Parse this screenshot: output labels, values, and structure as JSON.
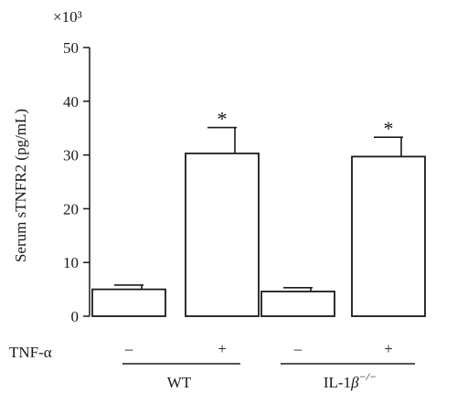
{
  "chart_data": {
    "type": "bar",
    "title": "",
    "ylabel": "Serum sTNFR2 (pg/mL)",
    "y_multiplier_label": "×10³",
    "ylim": [
      0,
      50
    ],
    "yticks": [
      0,
      10,
      20,
      30,
      40,
      50
    ],
    "ytick_labels": [
      "0",
      "10",
      "20",
      "30",
      "40",
      "50"
    ],
    "condition_row_label": "TNF-α",
    "bars": [
      {
        "group": "WT",
        "condition": "–",
        "value": 5.0,
        "error": 0.8,
        "annotation": ""
      },
      {
        "group": "WT",
        "condition": "+",
        "value": 30.3,
        "error": 4.8,
        "annotation": "*"
      },
      {
        "group": "IL-1β−/−",
        "condition": "–",
        "value": 4.6,
        "error": 0.7,
        "annotation": ""
      },
      {
        "group": "IL-1β−/−",
        "condition": "+",
        "value": 29.7,
        "error": 3.6,
        "annotation": "*"
      }
    ],
    "groups": [
      {
        "base": "WT",
        "sup": ""
      },
      {
        "base": "IL-1",
        "italic": "β",
        "sup": "−/−"
      }
    ],
    "grid": false,
    "legend": "none"
  }
}
